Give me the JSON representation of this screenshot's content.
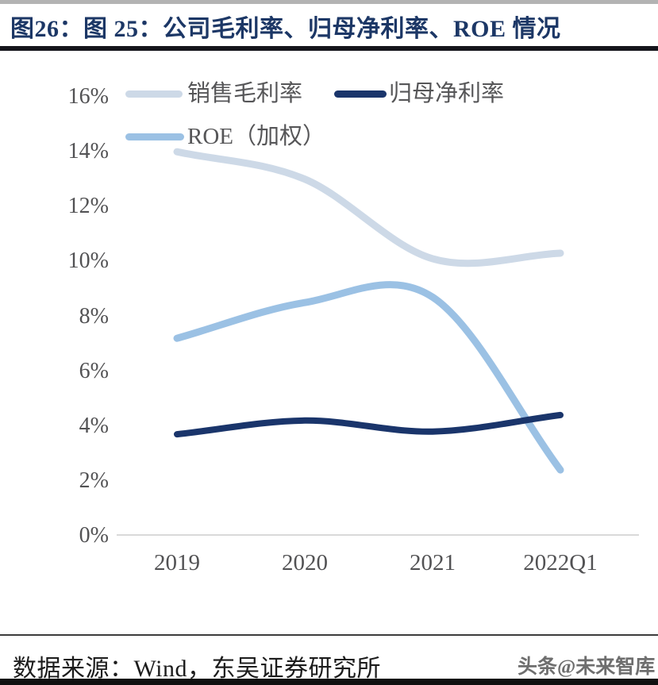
{
  "title": "图26：图 25：公司毛利率、归母净利率、ROE 情况",
  "footer": {
    "source": "数据来源：Wind，东吴证券研究所",
    "watermark": "头条@未来智库"
  },
  "colors": {
    "title_navy": "#1c3766",
    "axis_line": "#d9d9d9",
    "tick_text": "#525254",
    "legend_text": "#565658",
    "divider_dark": "#15151c",
    "bottom_bar": "#101010"
  },
  "chart_data": {
    "type": "line",
    "smooth": true,
    "grid": false,
    "legend_position": "top-left",
    "categories": [
      "2019",
      "2020",
      "2021",
      "2022Q1"
    ],
    "series": [
      {
        "name": "销售毛利率",
        "color": "#cdd9e7",
        "stroke_width": 9,
        "values": [
          14.0,
          13.0,
          10.1,
          10.3
        ]
      },
      {
        "name": "归母净利率",
        "color": "#1a356b",
        "stroke_width": 8,
        "values": [
          3.7,
          4.2,
          3.8,
          4.4
        ]
      },
      {
        "name": "ROE（加权）",
        "color": "#9bc1e4",
        "stroke_width": 9,
        "values": [
          7.2,
          8.5,
          8.7,
          2.4
        ]
      }
    ],
    "ylim": [
      0,
      16
    ],
    "yticks": [
      {
        "label": "16%",
        "value": 16
      },
      {
        "label": "14%",
        "value": 14
      },
      {
        "label": "12%",
        "value": 12
      },
      {
        "label": "10%",
        "value": 10
      },
      {
        "label": "8%",
        "value": 8
      },
      {
        "label": "6%",
        "value": 6
      },
      {
        "label": "4%",
        "value": 4
      },
      {
        "label": "2%",
        "value": 2
      },
      {
        "label": "0%",
        "value": 0
      }
    ]
  }
}
